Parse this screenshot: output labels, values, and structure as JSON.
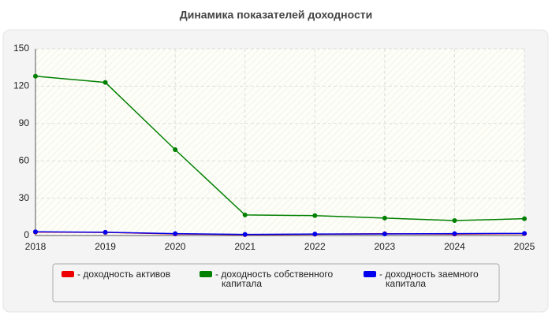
{
  "chart_data": {
    "type": "line",
    "title": "Динамика показателей доходности",
    "x": [
      2018,
      2019,
      2020,
      2021,
      2022,
      2023,
      2024,
      2025
    ],
    "xlim": [
      2018,
      2025
    ],
    "xticks": [
      2018,
      2019,
      2020,
      2021,
      2022,
      2023,
      2024,
      2025
    ],
    "ylim": [
      0,
      150
    ],
    "yticks": [
      0,
      30,
      60,
      90,
      120,
      150
    ],
    "grid": true,
    "series": [
      {
        "name": "- доходность активов",
        "color": "#ee0000",
        "values": [
          2.8,
          2.5,
          1.3,
          0.7,
          1.0,
          1.4,
          1.2,
          1.5
        ]
      },
      {
        "name": "- доходность собственного капитала",
        "color": "#008000",
        "values": [
          128,
          123,
          69,
          16.5,
          16,
          14,
          12,
          13.5
        ]
      },
      {
        "name": "- доходность заемного капитала",
        "color": "#0000ee",
        "values": [
          3.0,
          2.6,
          1.5,
          0.9,
          1.2,
          1.3,
          1.5,
          1.7
        ]
      }
    ]
  }
}
